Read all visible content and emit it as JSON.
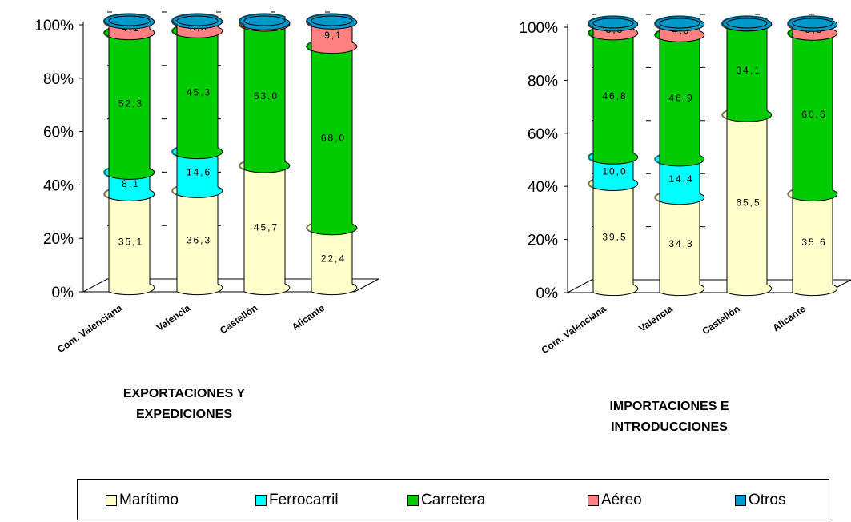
{
  "chart_data": [
    {
      "type": "bar",
      "stacked": true,
      "percent": true,
      "title": "EXPORTACIONES Y EXPEDICIONES",
      "title_lines": [
        "EXPORTACIONES Y",
        "EXPEDICIONES"
      ],
      "categories": [
        "Com. Valenciana",
        "Valencia",
        "Castellón",
        "Alicante"
      ],
      "ylim": [
        0,
        100
      ],
      "yticks": [
        "0%",
        "20%",
        "40%",
        "60%",
        "80%",
        "100%"
      ],
      "series": [
        {
          "name": "Marítimo",
          "values": [
            35.1,
            36.3,
            45.7,
            22.4
          ],
          "labels": [
            "35,1",
            "36,3",
            "45,7",
            "22,4"
          ]
        },
        {
          "name": "Ferrocarril",
          "values": [
            8.1,
            14.6,
            0.0,
            0.0
          ],
          "labels": [
            "8,1",
            "14,6",
            "",
            ""
          ]
        },
        {
          "name": "Carretera",
          "values": [
            52.3,
            45.3,
            53.0,
            68.0
          ],
          "labels": [
            "52,3",
            "45,3",
            "53,0",
            "68,0"
          ]
        },
        {
          "name": "Aéreo",
          "values": [
            4.1,
            3.5,
            0.5,
            9.1
          ],
          "labels": [
            "4,1",
            "3,5",
            "",
            "9,1"
          ]
        },
        {
          "name": "Otros",
          "values": [
            0.4,
            0.3,
            0.8,
            0.5
          ],
          "labels": [
            "",
            "",
            "",
            ""
          ]
        }
      ]
    },
    {
      "type": "bar",
      "stacked": true,
      "percent": true,
      "title": "IMPORTACIONES E INTRODUCCIONES",
      "title_lines": [
        "IMPORTACIONES E",
        "INTRODUCCIONES"
      ],
      "categories": [
        "Com. Valenciana",
        "Valencia",
        "Castellón",
        "Alicante"
      ],
      "ylim": [
        0,
        100
      ],
      "yticks": [
        "0%",
        "20%",
        "40%",
        "60%",
        "80%",
        "100%"
      ],
      "series": [
        {
          "name": "Marítimo",
          "values": [
            39.5,
            34.3,
            65.5,
            35.6
          ],
          "labels": [
            "39,5",
            "34,3",
            "65,5",
            "35,6"
          ]
        },
        {
          "name": "Ferrocarril",
          "values": [
            10.0,
            14.4,
            0.0,
            0.0
          ],
          "labels": [
            "10,0",
            "14,4",
            "",
            ""
          ]
        },
        {
          "name": "Carretera",
          "values": [
            46.8,
            46.9,
            34.1,
            60.6
          ],
          "labels": [
            "46,8",
            "46,9",
            "34,1",
            "60,6"
          ]
        },
        {
          "name": "Aéreo",
          "values": [
            3.3,
            4.0,
            0.1,
            3.3
          ],
          "labels": [
            "3,3",
            "4,0",
            "",
            "3,3"
          ]
        },
        {
          "name": "Otros",
          "values": [
            0.4,
            0.4,
            0.3,
            0.5
          ],
          "labels": [
            "",
            "",
            "",
            ""
          ]
        }
      ]
    }
  ],
  "legend": [
    {
      "name": "Marítimo",
      "color": "#FFFFCC"
    },
    {
      "name": "Ferrocarril",
      "color": "#00FFFF"
    },
    {
      "name": "Carretera",
      "color": "#00CC00"
    },
    {
      "name": "Aéreo",
      "color": "#FF8080"
    },
    {
      "name": "Otros",
      "color": "#0099CC"
    }
  ],
  "colors": {
    "Marítimo": "#FFFFCC",
    "Ferrocarril": "#00FFFF",
    "Carretera": "#00CC00",
    "Aéreo": "#FF8080",
    "Otros": "#0099CC"
  }
}
